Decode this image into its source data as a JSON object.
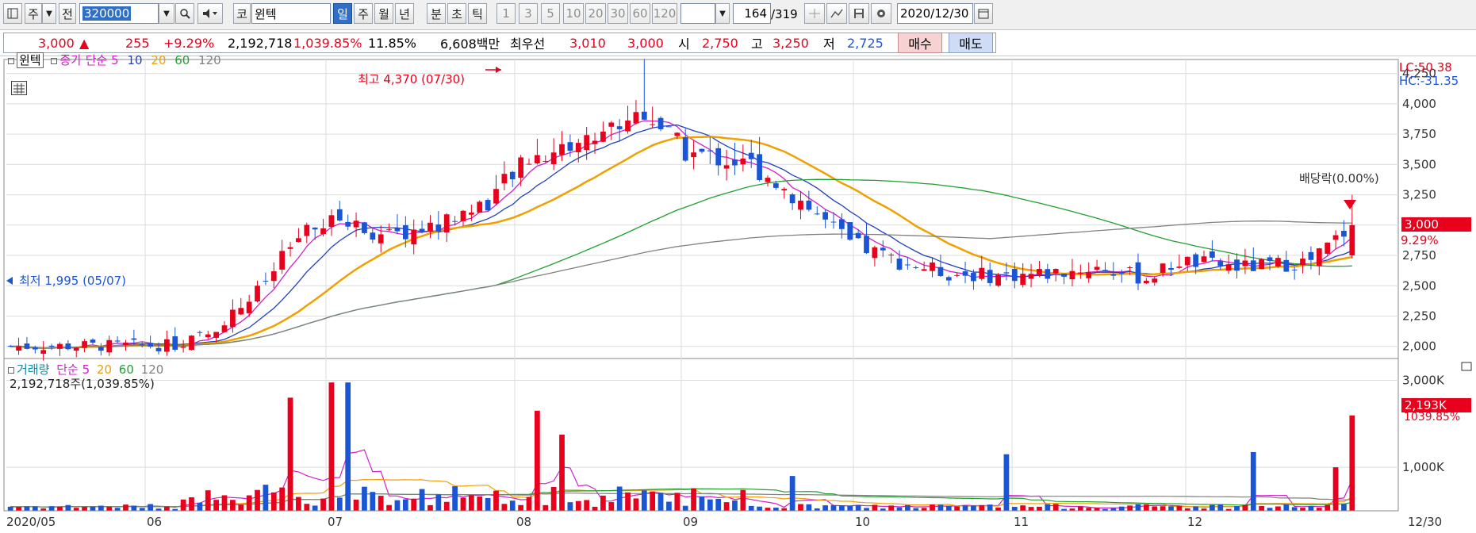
{
  "toolbar": {
    "market_label": "주",
    "type_label": "전",
    "stock_code": "320000",
    "market_prefix": "코",
    "stock_name": "윈텍",
    "periods": [
      "일",
      "주",
      "월",
      "년",
      "분",
      "초",
      "틱"
    ],
    "selected_period": "일",
    "intervals": [
      "1",
      "3",
      "5",
      "10",
      "20",
      "30",
      "60",
      "120"
    ],
    "count_value": "164",
    "count_total": "/319",
    "date_value": "2020/12/30"
  },
  "quote": {
    "price": "3,000",
    "change_arrow": "▲",
    "change": "255",
    "change_pct": "+9.29%",
    "volume": "2,192,718",
    "volume_ratio": "1,039.85%",
    "turnover": "11.85%",
    "amount": "6,608백만",
    "best_label": "최우선",
    "best_ask": "3,010",
    "best_bid": "3,000",
    "open_label": "시",
    "open": "2,750",
    "high_label": "고",
    "high": "3,250",
    "low_label": "저",
    "low": "2,725",
    "buy_label": "매수",
    "sell_label": "매도"
  },
  "price_panel": {
    "stock_label": "윈텍",
    "ma_label": "종가 단순",
    "ma_periods": [
      "5",
      "10",
      "20",
      "60",
      "120"
    ],
    "ma_colors": [
      "#d020c8",
      "#2040c0",
      "#f0a000",
      "#20a030",
      "#808080"
    ],
    "high_note": "최고 4,370 (07/30)",
    "low_note": "최저 1,995 (05/07)",
    "dividend_note": "배당락(0.00%)",
    "lc": "LC:50.38",
    "hc": "HC:-31.35",
    "price_tag": "3,000",
    "pct_tag": "9.29%",
    "y_ticks": [
      "4,250",
      "4,000",
      "3,750",
      "3,500",
      "3,250",
      "3,000",
      "2,750",
      "2,500",
      "2,250",
      "2,000"
    ]
  },
  "volume_panel": {
    "label": "거래량",
    "ma_label": "단순",
    "ma_periods": [
      "5",
      "20",
      "60",
      "120"
    ],
    "ma_colors": [
      "#d020c8",
      "#f0a000",
      "#20a030",
      "#808080"
    ],
    "value_text": "2,192,718주(1,039.85%)",
    "tag_value": "2,193K",
    "tag_pct": "1039.85%",
    "y_ticks": [
      "3,000K",
      "1,000K"
    ]
  },
  "x_axis": {
    "labels": [
      "2020/05",
      "06",
      "07",
      "08",
      "09",
      "10",
      "11",
      "12",
      "12/30"
    ]
  },
  "colors": {
    "up": "#e8001c",
    "down": "#1a55d6",
    "grid": "#dcdcdc"
  },
  "chart_data": {
    "type": "candlestick",
    "price_range": [
      1900,
      4300
    ],
    "volume_range": [
      0,
      3300
    ],
    "volume_unit": "K",
    "notes": {
      "high": 4370,
      "high_date": "07/30",
      "low": 1995,
      "low_date": "05/07"
    },
    "last": {
      "open": 2750,
      "high": 3250,
      "low": 2725,
      "close": 3000,
      "volume_k": 2193
    }
  }
}
